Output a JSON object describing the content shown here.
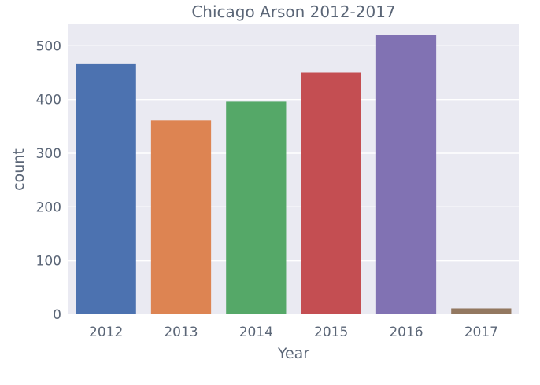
{
  "chart_data": {
    "type": "bar",
    "title": "Chicago Arson 2012-2017",
    "xlabel": "Year",
    "ylabel": "count",
    "categories": [
      "2012",
      "2013",
      "2014",
      "2015",
      "2016",
      "2017"
    ],
    "values": [
      467,
      361,
      396,
      450,
      520,
      11
    ],
    "ylim": [
      0,
      540
    ],
    "yticks": [
      0,
      100,
      200,
      300,
      400,
      500
    ],
    "grid": true,
    "background_color": "#eaeaf2",
    "colors": [
      "#4c72b0",
      "#dd8452",
      "#55a868",
      "#c44e52",
      "#8172b3",
      "#937860"
    ]
  }
}
